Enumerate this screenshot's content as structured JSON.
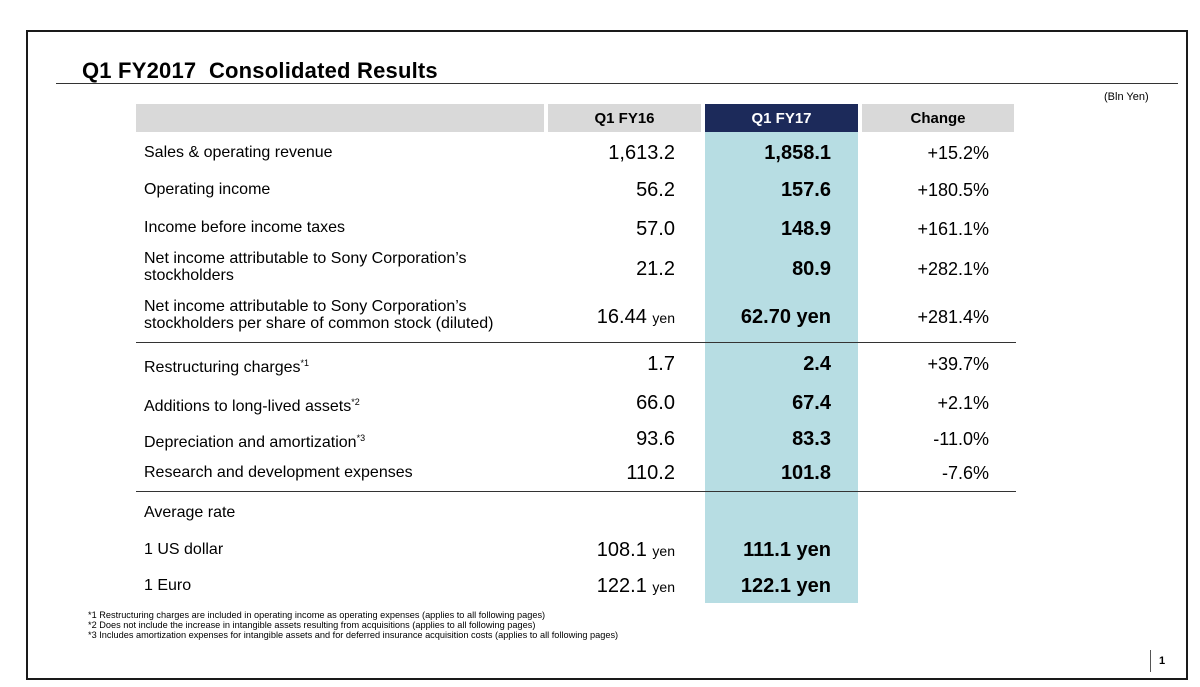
{
  "title": "Q1 FY2017  Consolidated Results",
  "unit": "(Bln Yen)",
  "columns": {
    "prev": "Q1 FY16",
    "curr": "Q1 FY17",
    "change": "Change"
  },
  "rows": [
    {
      "label": "Sales & operating revenue",
      "prev": "1,613.2",
      "curr": "1,858.1",
      "change": "+15.2%"
    },
    {
      "label": "Operating income",
      "prev": "56.2",
      "curr": "157.6",
      "change": "+180.5%"
    },
    {
      "label": "Income before income taxes",
      "prev": "57.0",
      "curr": "148.9",
      "change": "+161.1%"
    },
    {
      "label_line1": "Net income attributable to Sony Corporation’s",
      "label_line2": "stockholders",
      "prev": "21.2",
      "curr": "80.9",
      "change": "+282.1%"
    },
    {
      "label_line1": "Net income attributable to Sony Corporation’s",
      "label_line2": "stockholders per share of common stock (diluted)",
      "prev": "16.44",
      "prev_unit": "yen",
      "curr": "62.70 yen",
      "change": "+281.4%"
    },
    {
      "label": "Restructuring charges",
      "note": "*1",
      "prev": "1.7",
      "curr": "2.4",
      "change": "+39.7%"
    },
    {
      "label": "Additions to long-lived assets",
      "note": "*2",
      "prev": "66.0",
      "curr": "67.4",
      "change": "+2.1%"
    },
    {
      "label": "Depreciation and amortization",
      "note": "*3",
      "prev": "93.6",
      "curr": "83.3",
      "change": "-11.0%"
    },
    {
      "label": "Research and development expenses",
      "prev": "110.2",
      "curr": "101.8",
      "change": "-7.6%"
    },
    {
      "label": "Average rate"
    },
    {
      "label": "1 US dollar",
      "prev": "108.1",
      "prev_unit": "yen",
      "curr": "111.1 yen"
    },
    {
      "label": "1 Euro",
      "prev": "122.1",
      "prev_unit": "yen",
      "curr": "122.1 yen"
    }
  ],
  "footnotes": [
    "*1 Restructuring charges are included in operating income as operating expenses (applies to all following pages)",
    "*2 Does not include the increase in intangible assets resulting from acquisitions (applies to all following pages)",
    "*3 Includes amortization expenses for intangible assets and for deferred insurance acquisition costs (applies to all following pages)"
  ],
  "page_number": "1",
  "colors": {
    "header_dark": "#1c2a5a",
    "highlight_column": "#b7dde3",
    "header_gray": "#d9d9d9"
  }
}
